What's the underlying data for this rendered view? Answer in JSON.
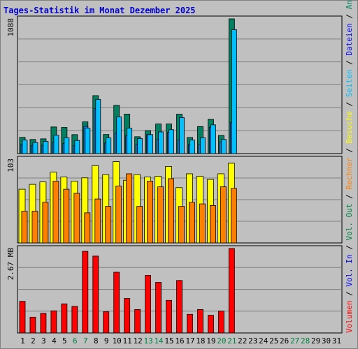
{
  "title": "Tages-Statistik im Monat Dezember 2025",
  "colors": {
    "background": "#c0c0c0",
    "title": "#0000cc",
    "anfragen": "#008060",
    "dateien": "#0080ff",
    "seiten": "#00c0ff",
    "besuche": "#ffff00",
    "rechner": "#ff8000",
    "volumen": "#ff0000",
    "weekend_label": "#008040"
  },
  "legend_right": [
    {
      "text": "Volumen",
      "color": "#ff0000"
    },
    {
      "text": "/",
      "color": "#000000"
    },
    {
      "text": "Vol. In",
      "color": "#0000ff"
    },
    {
      "text": "/",
      "color": "#000000"
    },
    {
      "text": "Vol. Out",
      "color": "#008040"
    },
    {
      "text": "/",
      "color": "#000000"
    },
    {
      "text": "Rechner",
      "color": "#ff8000"
    },
    {
      "text": "/",
      "color": "#000000"
    },
    {
      "text": "Besuche",
      "color": "#ffff00"
    },
    {
      "text": "/",
      "color": "#000000"
    },
    {
      "text": "Seiten",
      "color": "#00c0ff"
    },
    {
      "text": "/",
      "color": "#000000"
    },
    {
      "text": "Dateien",
      "color": "#0000ff"
    },
    {
      "text": "/",
      "color": "#000000"
    },
    {
      "text": "Anfragen",
      "color": "#008060"
    }
  ],
  "chart_data": [
    {
      "type": "bar",
      "panel": "anfragen",
      "max_label": "1088",
      "ylim": [
        0,
        1088
      ],
      "categories": [
        "1",
        "2",
        "3",
        "4",
        "5",
        "6",
        "7",
        "8",
        "9",
        "10",
        "11",
        "12",
        "13",
        "14",
        "15",
        "16",
        "17",
        "18",
        "19",
        "20",
        "21",
        "22",
        "23",
        "24",
        "25",
        "26",
        "27",
        "28",
        "29",
        "30",
        "31"
      ],
      "weekend_days": [
        "6",
        "7",
        "13",
        "14",
        "20",
        "21",
        "27",
        "28"
      ],
      "series": [
        {
          "name": "Anfragen",
          "values": [
            131,
            114,
            119,
            215,
            211,
            153,
            256,
            468,
            154,
            389,
            319,
            136,
            185,
            239,
            239,
            318,
            130,
            218,
            276,
            146,
            1088,
            0,
            0,
            0,
            0,
            0,
            0,
            0,
            0,
            0,
            0
          ]
        },
        {
          "name": "Dateien",
          "values": [
            75,
            66,
            68,
            90,
            82,
            64,
            220,
            364,
            86,
            168,
            144,
            76,
            154,
            115,
            172,
            111,
            72,
            76,
            213,
            92,
            250,
            0,
            0,
            0,
            0,
            0,
            0,
            0,
            0,
            0,
            0
          ]
        },
        {
          "name": "Seiten",
          "values": [
            109,
            89,
            98,
            148,
            128,
            106,
            205,
            437,
            127,
            296,
            205,
            121,
            153,
            175,
            193,
            290,
            109,
            128,
            232,
            114,
            1000,
            0,
            0,
            0,
            0,
            0,
            0,
            0,
            0,
            0,
            0
          ]
        }
      ]
    },
    {
      "type": "bar",
      "panel": "besuche",
      "max_label": "103",
      "ylim": [
        0,
        103
      ],
      "categories": [
        "1",
        "2",
        "3",
        "4",
        "5",
        "6",
        "7",
        "8",
        "9",
        "10",
        "11",
        "12",
        "13",
        "14",
        "15",
        "16",
        "17",
        "18",
        "19",
        "20",
        "21",
        "22",
        "23",
        "24",
        "25",
        "26",
        "27",
        "28",
        "29",
        "30",
        "31"
      ],
      "series": [
        {
          "name": "Besuche",
          "values": [
            66,
            72,
            75,
            87,
            81,
            76,
            80,
            95,
            84,
            100,
            77,
            84,
            81,
            82,
            94,
            68,
            85,
            82,
            78,
            85,
            98,
            0,
            0,
            0,
            0,
            0,
            0,
            0,
            0,
            0,
            0
          ]
        },
        {
          "name": "Rechner",
          "values": [
            39,
            39,
            50,
            76,
            66,
            61,
            37,
            54,
            45,
            70,
            85,
            45,
            76,
            69,
            79,
            45,
            50,
            48,
            46,
            69,
            67,
            0,
            0,
            0,
            0,
            0,
            0,
            0,
            0,
            0,
            0
          ]
        }
      ]
    },
    {
      "type": "bar",
      "panel": "volumen",
      "max_label": "2.67 MB",
      "ylim": [
        0,
        2.67
      ],
      "categories": [
        "1",
        "2",
        "3",
        "4",
        "5",
        "6",
        "7",
        "8",
        "9",
        "10",
        "11",
        "12",
        "13",
        "14",
        "15",
        "16",
        "17",
        "18",
        "19",
        "20",
        "21",
        "22",
        "23",
        "24",
        "25",
        "26",
        "27",
        "28",
        "29",
        "30",
        "31"
      ],
      "series": [
        {
          "name": "Volumen",
          "values": [
            1.0,
            0.5,
            0.62,
            0.7,
            0.92,
            0.84,
            2.58,
            2.43,
            0.67,
            1.92,
            1.09,
            0.74,
            1.82,
            1.6,
            1.03,
            1.66,
            0.59,
            0.74,
            0.56,
            0.69,
            2.67,
            0,
            0,
            0,
            0,
            0,
            0,
            0,
            0,
            0,
            0
          ]
        }
      ]
    }
  ]
}
